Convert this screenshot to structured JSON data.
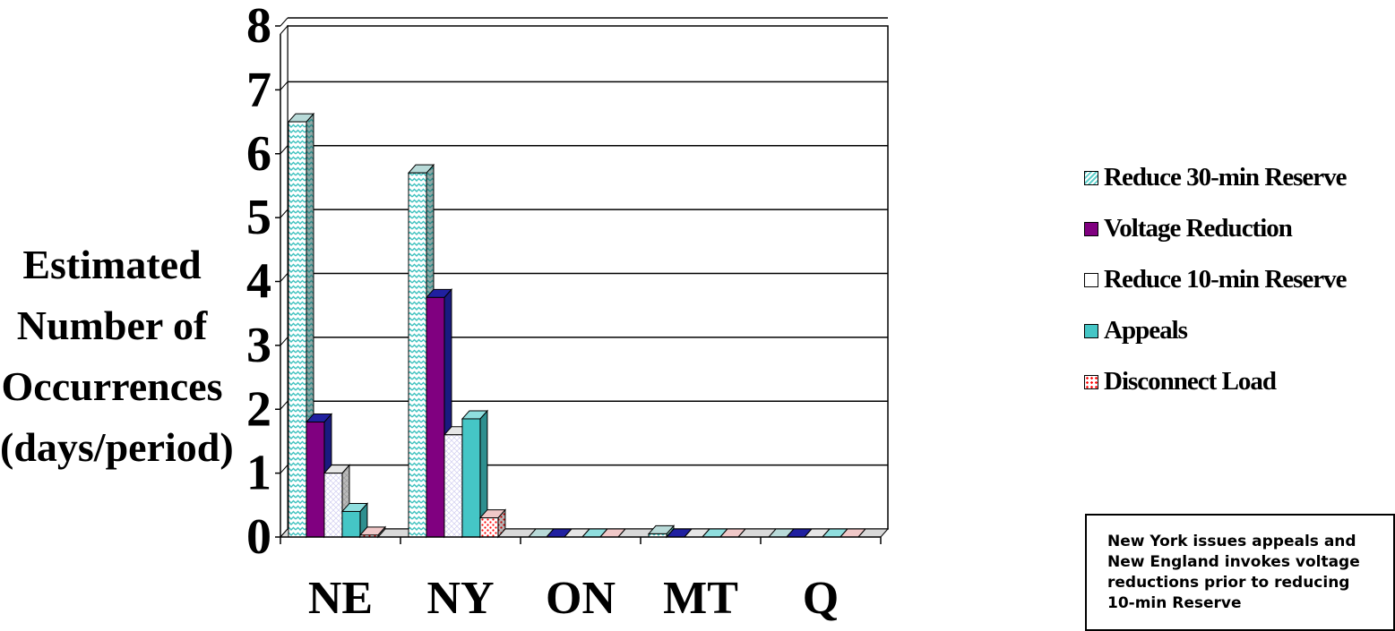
{
  "chart_data": {
    "type": "bar",
    "categories": [
      "NE",
      "NY",
      "ON",
      "MT",
      "Q"
    ],
    "series": [
      {
        "name": "Reduce 30-min Reserve",
        "values": [
          6.5,
          5.7,
          0,
          0.05,
          0
        ],
        "color": "#5ECFCB",
        "pattern": "zigzag"
      },
      {
        "name": "Voltage Reduction",
        "values": [
          1.8,
          3.75,
          0,
          0,
          0
        ],
        "color": "#800080",
        "pattern": "solid"
      },
      {
        "name": "Reduce 10-min Reserve",
        "values": [
          1.0,
          1.6,
          0,
          0,
          0
        ],
        "color": "#FFFFFF",
        "pattern": "crosshatch"
      },
      {
        "name": "Appeals",
        "values": [
          0.4,
          1.85,
          0,
          0,
          0
        ],
        "color": "#45C6C6",
        "pattern": "solid"
      },
      {
        "name": "Disconnect Load",
        "values": [
          0.03,
          0.3,
          0,
          0,
          0
        ],
        "color": "#FF2020",
        "pattern": "dots"
      }
    ],
    "ylabel": [
      "Estimated",
      "Number of",
      "Occurrences",
      "(days/period)"
    ],
    "ylim": [
      0,
      8
    ],
    "yticks": [
      "0",
      "1",
      "2",
      "3",
      "4",
      "5",
      "6",
      "7",
      "8"
    ],
    "grid": true,
    "legend_position": "right"
  },
  "note": {
    "lines": [
      "New York issues appeals and",
      "New England invokes voltage",
      "reductions prior to reducing",
      "10-min Reserve"
    ]
  }
}
